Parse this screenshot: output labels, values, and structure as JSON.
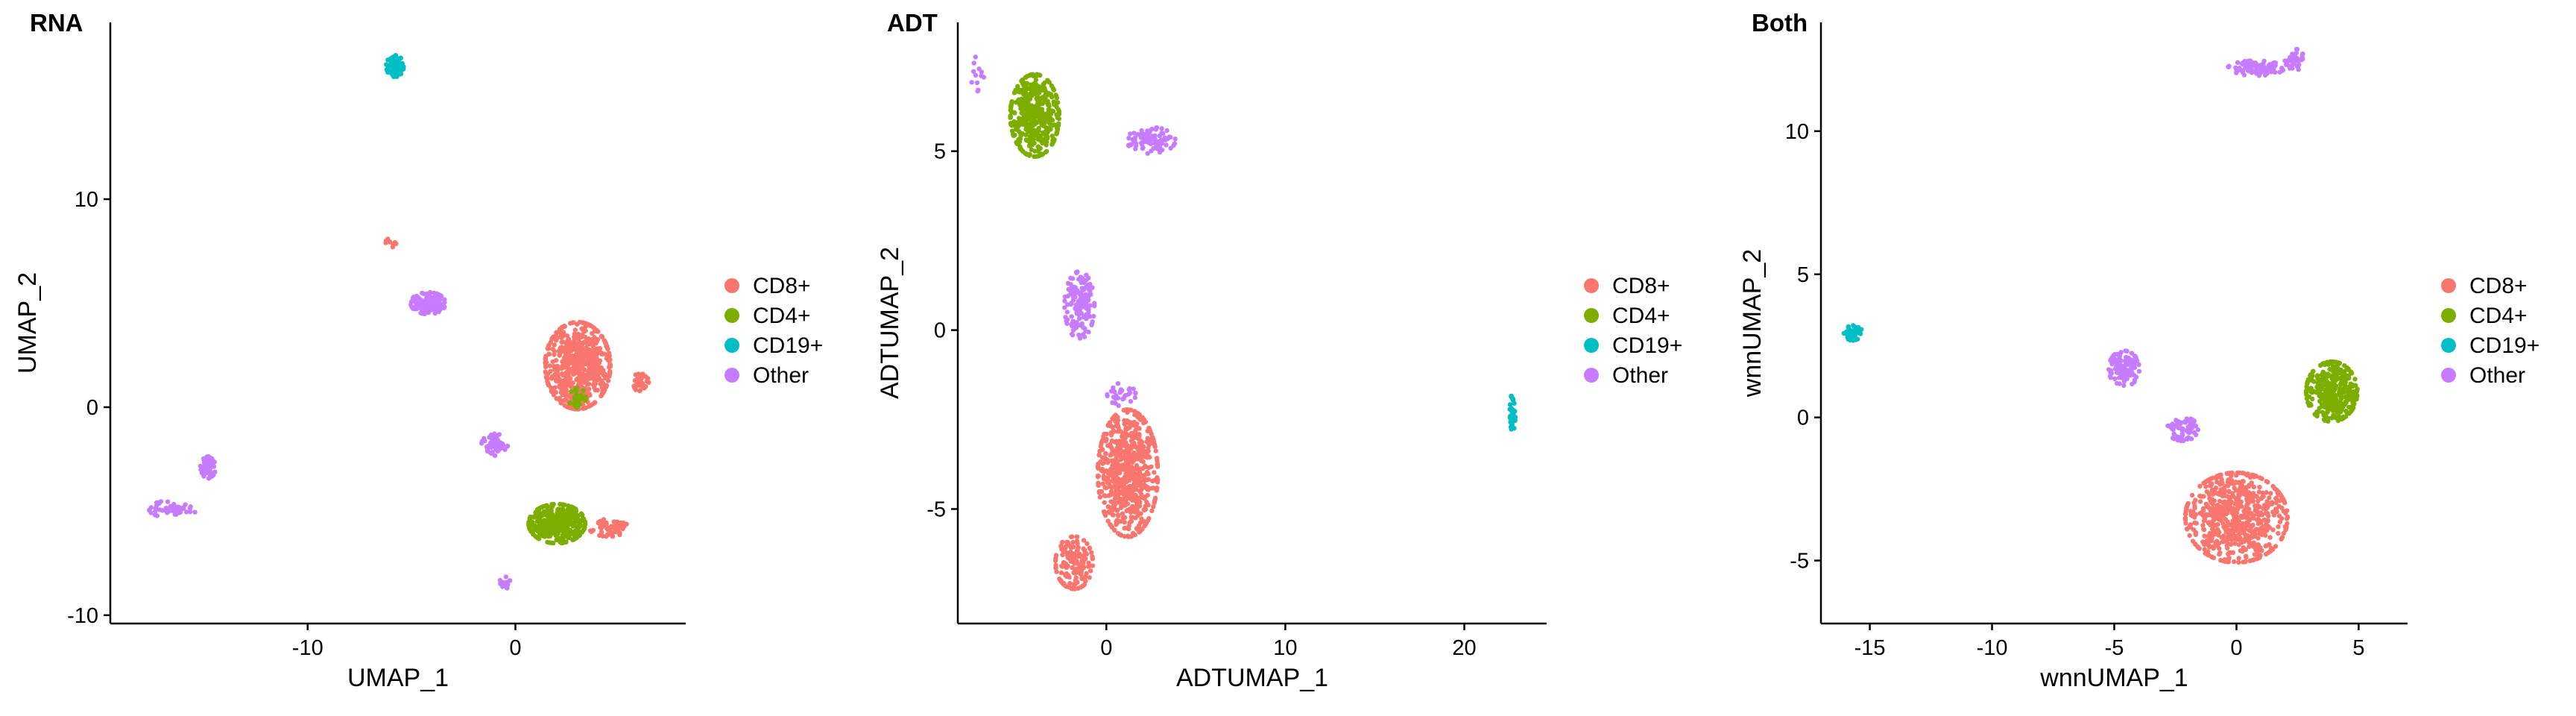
{
  "colors": {
    "CD8+": "#F8766D",
    "CD4+": "#7CAE00",
    "CD19+": "#00BFC4",
    "Other": "#C77CFF"
  },
  "legend": [
    "CD8+",
    "CD4+",
    "CD19+",
    "Other"
  ],
  "chart_data": [
    {
      "type": "scatter",
      "title": "RNA",
      "xlabel": "UMAP_1",
      "ylabel": "UMAP_2",
      "xlim": [
        -19.5,
        8.2
      ],
      "ylim": [
        -10.4,
        18.5
      ],
      "xticks": [
        -10,
        0
      ],
      "yticks": [
        -10,
        0,
        10
      ],
      "legend": [
        "CD8+",
        "CD4+",
        "CD19+",
        "Other"
      ],
      "clusters": [
        {
          "group": "CD8+",
          "center": [
            3.0,
            2.0
          ],
          "spread": [
            1.5,
            2.0
          ],
          "n": 640
        },
        {
          "group": "CD8+",
          "center": [
            6.0,
            1.2
          ],
          "spread": [
            0.4,
            0.4
          ],
          "n": 40
        },
        {
          "group": "CD8+",
          "center": [
            4.5,
            -5.8
          ],
          "spread": [
            0.9,
            0.4
          ],
          "n": 60
        },
        {
          "group": "CD8+",
          "center": [
            -6.0,
            7.9
          ],
          "spread": [
            0.3,
            0.2
          ],
          "n": 8
        },
        {
          "group": "CD4+",
          "center": [
            2.0,
            -5.6
          ],
          "spread": [
            1.3,
            0.9
          ],
          "n": 380
        },
        {
          "group": "CD4+",
          "center": [
            3.0,
            0.4
          ],
          "spread": [
            0.4,
            0.5
          ],
          "n": 30
        },
        {
          "group": "CD19+",
          "center": [
            -5.8,
            16.4
          ],
          "spread": [
            0.4,
            0.5
          ],
          "n": 70
        },
        {
          "group": "Other",
          "center": [
            -4.2,
            5.0
          ],
          "spread": [
            0.8,
            0.5
          ],
          "n": 150
        },
        {
          "group": "Other",
          "center": [
            -1.0,
            -1.8
          ],
          "spread": [
            0.6,
            0.5
          ],
          "n": 60
        },
        {
          "group": "Other",
          "center": [
            -14.8,
            -2.9
          ],
          "spread": [
            0.35,
            0.5
          ],
          "n": 60
        },
        {
          "group": "Other",
          "center": [
            -16.5,
            -4.9
          ],
          "spread": [
            1.1,
            0.4
          ],
          "n": 50
        },
        {
          "group": "Other",
          "center": [
            -0.5,
            -8.5
          ],
          "spread": [
            0.3,
            0.4
          ],
          "n": 15
        }
      ]
    },
    {
      "type": "scatter",
      "title": "ADT",
      "xlabel": "ADTUMAP_1",
      "ylabel": "ADTUMAP_2",
      "xlim": [
        -8.3,
        24.6
      ],
      "ylim": [
        -8.2,
        8.6
      ],
      "xticks": [
        0,
        10,
        20
      ],
      "yticks": [
        -5,
        0,
        5
      ],
      "legend": [
        "CD8+",
        "CD4+",
        "CD19+",
        "Other"
      ],
      "clusters": [
        {
          "group": "CD8+",
          "center": [
            1.2,
            -4.0
          ],
          "spread": [
            1.6,
            1.7
          ],
          "n": 650
        },
        {
          "group": "CD8+",
          "center": [
            -1.8,
            -6.5
          ],
          "spread": [
            1.0,
            0.7
          ],
          "n": 150
        },
        {
          "group": "CD4+",
          "center": [
            -4.0,
            6.0
          ],
          "spread": [
            1.3,
            1.1
          ],
          "n": 430
        },
        {
          "group": "CD19+",
          "center": [
            22.7,
            -2.3
          ],
          "spread": [
            0.15,
            0.5
          ],
          "n": 40
        },
        {
          "group": "Other",
          "center": [
            -1.5,
            0.7
          ],
          "spread": [
            0.8,
            0.9
          ],
          "n": 150
        },
        {
          "group": "Other",
          "center": [
            0.8,
            -1.8
          ],
          "spread": [
            0.8,
            0.3
          ],
          "n": 30
        },
        {
          "group": "Other",
          "center": [
            2.5,
            5.3
          ],
          "spread": [
            1.3,
            0.35
          ],
          "n": 90
        },
        {
          "group": "Other",
          "center": [
            -7.2,
            7.2
          ],
          "spread": [
            0.4,
            0.5
          ],
          "n": 12
        }
      ]
    },
    {
      "type": "scatter",
      "title": "Both",
      "xlabel": "wnnUMAP_1",
      "ylabel": "wnnUMAP_2",
      "xlim": [
        -17.0,
        7.0
      ],
      "ylim": [
        -7.2,
        13.8
      ],
      "xticks": [
        -15,
        -10,
        -5,
        0,
        5
      ],
      "yticks": [
        -5,
        0,
        5,
        10
      ],
      "legend": [
        "CD8+",
        "CD4+",
        "CD19+",
        "Other"
      ],
      "clusters": [
        {
          "group": "CD8+",
          "center": [
            0.0,
            -3.5
          ],
          "spread": [
            2.0,
            1.5
          ],
          "n": 700
        },
        {
          "group": "CD4+",
          "center": [
            3.9,
            0.9
          ],
          "spread": [
            1.0,
            1.0
          ],
          "n": 350
        },
        {
          "group": "CD19+",
          "center": [
            -15.7,
            3.0
          ],
          "spread": [
            0.35,
            0.3
          ],
          "n": 45
        },
        {
          "group": "Other",
          "center": [
            -4.6,
            1.7
          ],
          "spread": [
            0.6,
            0.6
          ],
          "n": 110
        },
        {
          "group": "Other",
          "center": [
            -2.2,
            -0.4
          ],
          "spread": [
            0.6,
            0.4
          ],
          "n": 60
        },
        {
          "group": "Other",
          "center": [
            0.8,
            12.2
          ],
          "spread": [
            1.1,
            0.25
          ],
          "n": 90
        },
        {
          "group": "Other",
          "center": [
            2.4,
            12.5
          ],
          "spread": [
            0.4,
            0.35
          ],
          "n": 40
        }
      ]
    }
  ]
}
